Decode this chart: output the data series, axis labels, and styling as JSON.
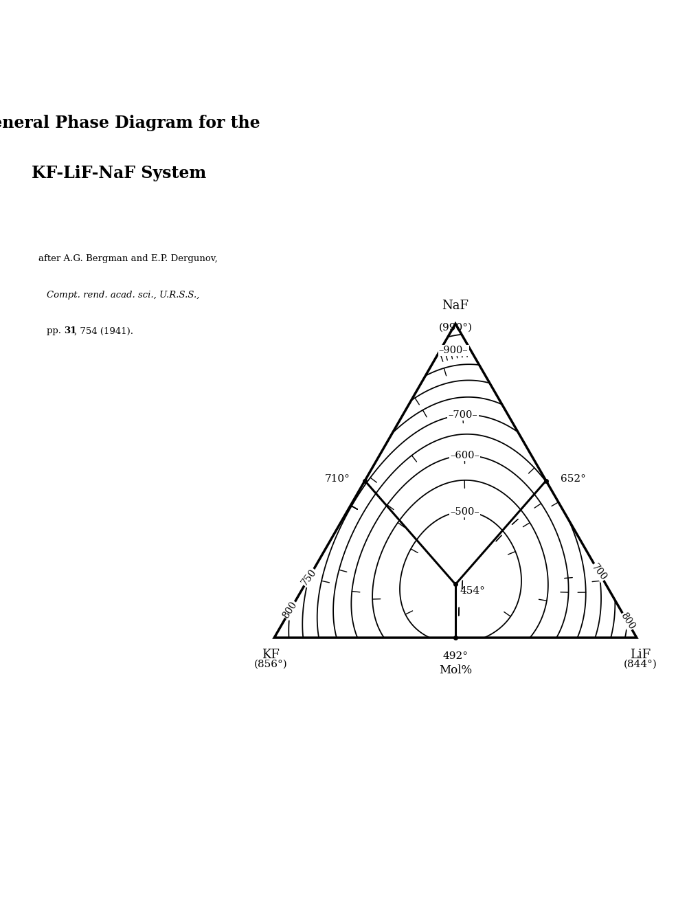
{
  "title_line1": "General Phase Diagram for the",
  "title_line2": "KF-LiF-NaF System",
  "ref_line1": "after A.G. Bergman and E.P. Dergunov,",
  "ref_line2": "Compt. rend. acad. sci., U.R.S.S.,",
  "ref_line3a": "pp. ",
  "ref_line3b": "31",
  "ref_line3c": ", 754 (1941).",
  "label_NaF": "NaF",
  "temp_NaF": "(990°)",
  "label_KF": "KF",
  "temp_KF": "(856°)",
  "label_LiF": "LiF",
  "temp_LiF": "(844°)",
  "label_eut_kfnaf": "710°",
  "label_eut_lifnaf": "652°",
  "label_eut_kflif": "492°",
  "label_eut_ternary": "454°",
  "label_mol": "Mol%",
  "T_KF": 856,
  "T_LiF": 844,
  "T_NaF": 990,
  "T_eut_KF_NaF": 710,
  "T_eut_LiF_NaF": 652,
  "T_eut_KF_LiF": 492,
  "T_ternary": 454,
  "eut_kfnaf_kf": 0.5,
  "eut_kfnaf_lif": 0.0,
  "eut_kfnaf_naf": 0.5,
  "eut_lifnaf_kf": 0.0,
  "eut_lifnaf_lif": 0.5,
  "eut_lifnaf_naf": 0.5,
  "eut_kflif_kf": 0.5,
  "eut_kflif_lif": 0.5,
  "eut_kflif_naf": 0.0,
  "eut_tern_kf": 0.415,
  "eut_tern_lif": 0.415,
  "eut_tern_naf": 0.17,
  "isotherm_levels": [
    500,
    550,
    600,
    650,
    700,
    750,
    800,
    850,
    900,
    950
  ],
  "isotherm_label_levels": [
    500,
    600,
    700,
    800,
    900
  ],
  "bg_color": "#ffffff",
  "line_color": "#000000"
}
